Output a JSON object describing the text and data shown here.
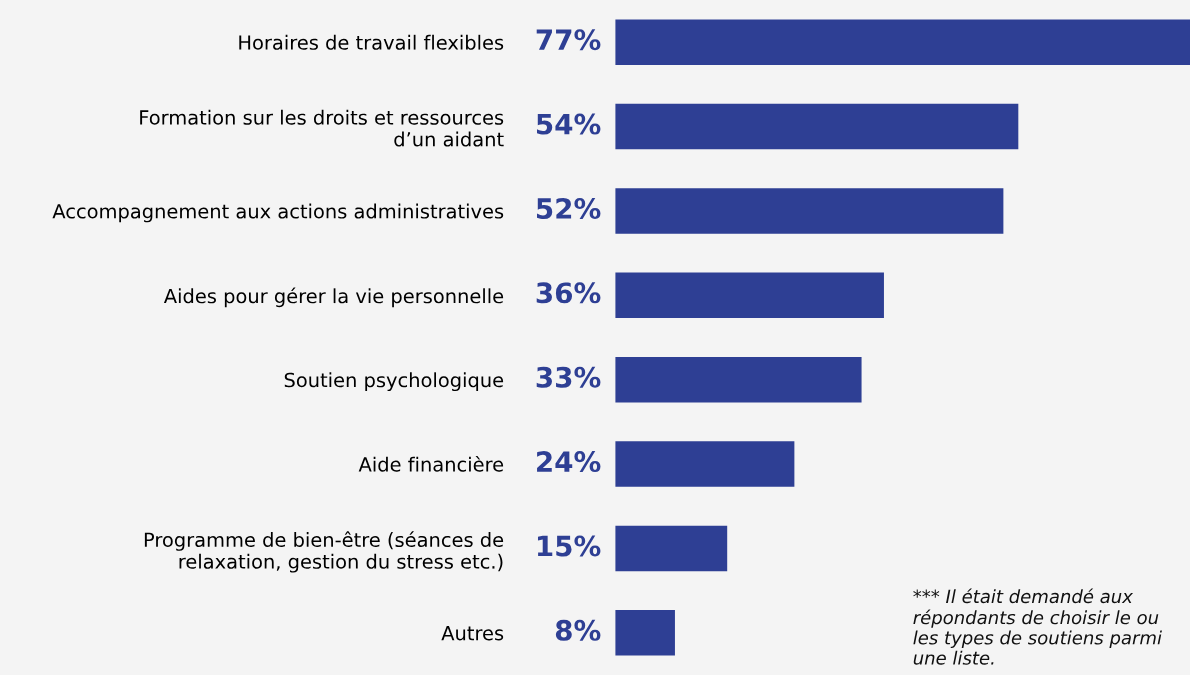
{
  "chart_data": {
    "type": "bar",
    "orientation": "horizontal",
    "categories": [
      "Horaires de travail flexibles",
      "Formation sur les droits et ressources\nd’un aidant",
      "Accompagnement aux actions administratives",
      "Aides pour gérer la vie personnelle",
      "Soutien psychologique",
      "Aide financière",
      "Programme de bien-être (séances de\nrelaxation, gestion du stress etc.)",
      "Autres"
    ],
    "values": [
      77,
      54,
      52,
      36,
      33,
      24,
      15,
      8
    ],
    "value_labels": [
      "77%",
      "54%",
      "52%",
      "36%",
      "33%",
      "24%",
      "15%",
      "8%"
    ],
    "color": "#2e3f94",
    "annotations": [
      "*** Il était demandé aux répondants de choisir le ou les types de soutiens parmi une liste."
    ]
  }
}
